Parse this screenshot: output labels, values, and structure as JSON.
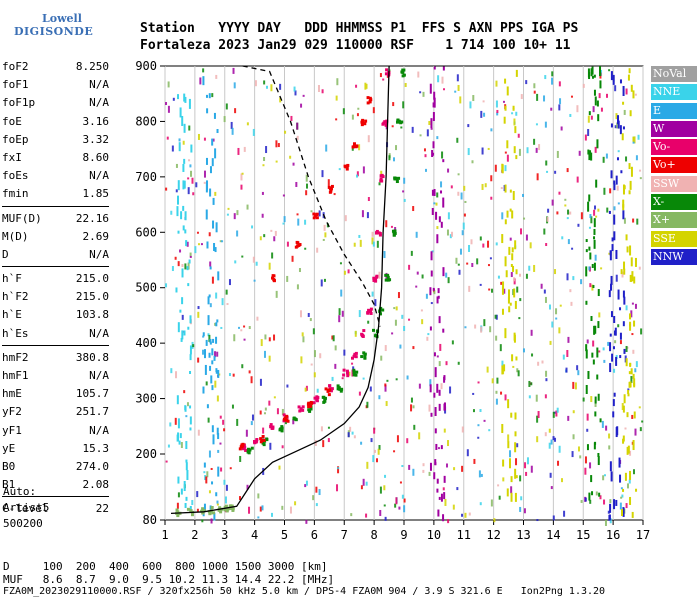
{
  "logo": {
    "line1": "Lowell",
    "line2": "DIGISONDE"
  },
  "header": {
    "line1": "Station   YYYY DAY   DDD HHMMSS P1  FFS S AXN PPS IGA PS",
    "line2": "Fortaleza 2023 Jan29 029 110000 RSF    1 714 100 10+ 11"
  },
  "params": [
    {
      "group": [
        {
          "k": "foF2",
          "v": "8.250"
        },
        {
          "k": "foF1",
          "v": "N/A"
        },
        {
          "k": "foF1p",
          "v": "N/A"
        },
        {
          "k": "foE",
          "v": "3.16"
        },
        {
          "k": "foEp",
          "v": "3.32"
        },
        {
          "k": "fxI",
          "v": "8.60"
        },
        {
          "k": "foEs",
          "v": "N/A"
        },
        {
          "k": "fmin",
          "v": "1.85"
        }
      ]
    },
    {
      "group": [
        {
          "k": "MUF(D)",
          "v": "22.16"
        },
        {
          "k": "M(D)",
          "v": "2.69"
        },
        {
          "k": "D",
          "v": "N/A"
        }
      ]
    },
    {
      "group": [
        {
          "k": "h`F",
          "v": "215.0"
        },
        {
          "k": "h`F2",
          "v": "215.0"
        },
        {
          "k": "h`E",
          "v": "103.8"
        },
        {
          "k": "h`Es",
          "v": "N/A"
        }
      ]
    },
    {
      "group": [
        {
          "k": "hmF2",
          "v": "380.8"
        },
        {
          "k": "hmF1",
          "v": "N/A"
        },
        {
          "k": "hmE",
          "v": "105.7"
        },
        {
          "k": "yF2",
          "v": "251.7"
        },
        {
          "k": "yF1",
          "v": "N/A"
        },
        {
          "k": "yE",
          "v": "15.3"
        },
        {
          "k": "B0",
          "v": "274.0"
        },
        {
          "k": "B1",
          "v": "2.08"
        }
      ]
    },
    {
      "group": [
        {
          "k": "C-level",
          "v": "22"
        }
      ]
    }
  ],
  "auto": {
    "line1": "Auto:",
    "line2": "Artist5",
    "line3": "500200"
  },
  "legend": [
    {
      "label": "NoVal",
      "color": "#a0a0a0"
    },
    {
      "label": "NNE",
      "color": "#3ad3ea"
    },
    {
      "label": "E",
      "color": "#2aa9e6"
    },
    {
      "label": "W",
      "color": "#a000a0"
    },
    {
      "label": "Vo-",
      "color": "#e8006a"
    },
    {
      "label": "Vo+",
      "color": "#ee0000"
    },
    {
      "label": "SSW",
      "color": "#f0b2b2"
    },
    {
      "label": "X-",
      "color": "#088808"
    },
    {
      "label": "X+",
      "color": "#86b862"
    },
    {
      "label": "SSE",
      "color": "#d4d400"
    },
    {
      "label": "NNW",
      "color": "#2020c8"
    }
  ],
  "footer": {
    "d_row": "D     100  200  400  600  800 1000 1500 3000 [km]",
    "muf_row": "MUF   8.6  8.7  9.0  9.5 10.2 11.3 14.4 22.2 [MHz]",
    "file_row": "FZA0M_2023029110000.RSF / 320fx256h 50 kHz 5.0 km / DPS-4 FZA0M 904 / 3.9 S 321.6 E   Ion2Png 1.3.20"
  },
  "chart_data": {
    "type": "scatter",
    "x_ticks": [
      1,
      2,
      3,
      4,
      5,
      6,
      7,
      8,
      9,
      10,
      11,
      12,
      13,
      14,
      15,
      16,
      17
    ],
    "y_ticks": [
      80,
      200,
      300,
      400,
      500,
      600,
      700,
      800,
      900
    ],
    "xlim": [
      1,
      17
    ],
    "ylim": [
      80,
      900
    ],
    "xlabel": "",
    "ylabel": "",
    "grid": "vertical lines at each integer frequency",
    "series": [
      {
        "name": "Vo-",
        "color": "#e8006a",
        "points": [
          [
            3.6,
            215
          ],
          [
            4.0,
            225
          ],
          [
            4.5,
            250
          ],
          [
            5.0,
            268
          ],
          [
            5.5,
            285
          ],
          [
            6.0,
            300
          ],
          [
            6.5,
            320
          ],
          [
            7.0,
            350
          ],
          [
            7.3,
            380
          ],
          [
            7.6,
            420
          ],
          [
            7.8,
            460
          ],
          [
            8.0,
            520
          ],
          [
            8.1,
            600
          ],
          [
            8.2,
            700
          ],
          [
            8.3,
            800
          ],
          [
            8.4,
            890
          ]
        ]
      },
      {
        "name": "X-",
        "color": "#088808",
        "points": [
          [
            3.8,
            210
          ],
          [
            4.3,
            225
          ],
          [
            4.8,
            250
          ],
          [
            5.3,
            268
          ],
          [
            5.8,
            285
          ],
          [
            6.3,
            300
          ],
          [
            6.8,
            320
          ],
          [
            7.3,
            350
          ],
          [
            7.6,
            380
          ],
          [
            8.0,
            420
          ],
          [
            8.2,
            460
          ],
          [
            8.4,
            520
          ],
          [
            8.6,
            600
          ],
          [
            8.7,
            700
          ],
          [
            8.8,
            800
          ],
          [
            8.9,
            890
          ]
        ]
      },
      {
        "name": "Vo+",
        "color": "#ee0000",
        "points": [
          [
            3.5,
            215
          ],
          [
            4.2,
            230
          ],
          [
            5.0,
            265
          ],
          [
            5.8,
            290
          ],
          [
            6.4,
            315
          ],
          [
            4.6,
            520
          ],
          [
            5.4,
            580
          ],
          [
            6.0,
            630
          ],
          [
            6.5,
            680
          ],
          [
            7.0,
            720
          ],
          [
            7.3,
            760
          ],
          [
            7.6,
            800
          ],
          [
            7.8,
            840
          ]
        ]
      }
    ],
    "profile_line": {
      "name": "",
      "points": [
        [
          1.2,
          92
        ],
        [
          2.3,
          95
        ],
        [
          3.4,
          105
        ],
        [
          3.7,
          130
        ],
        [
          4.0,
          155
        ],
        [
          4.6,
          185
        ],
        [
          5.4,
          205
        ],
        [
          6.2,
          225
        ],
        [
          7.0,
          255
        ],
        [
          7.5,
          285
        ],
        [
          7.8,
          320
        ],
        [
          8.0,
          370
        ],
        [
          8.15,
          430
        ],
        [
          8.25,
          500
        ],
        [
          8.3,
          600
        ],
        [
          8.4,
          700
        ],
        [
          8.45,
          800
        ],
        [
          8.5,
          900
        ]
      ]
    },
    "muf_dashed": {
      "name": "",
      "points": [
        [
          3.6,
          900
        ],
        [
          4.5,
          890
        ],
        [
          5.2,
          800
        ],
        [
          5.8,
          700
        ],
        [
          6.4,
          620
        ],
        [
          7.0,
          560
        ],
        [
          7.6,
          510
        ],
        [
          8.0,
          470
        ],
        [
          8.2,
          430
        ]
      ]
    },
    "e_layer": {
      "name": "X+",
      "color": "#86b862",
      "points": [
        [
          1.4,
          95
        ],
        [
          1.8,
          97
        ],
        [
          2.2,
          98
        ],
        [
          2.5,
          100
        ],
        [
          2.8,
          103
        ],
        [
          3.0,
          104
        ],
        [
          3.2,
          106
        ]
      ]
    }
  }
}
